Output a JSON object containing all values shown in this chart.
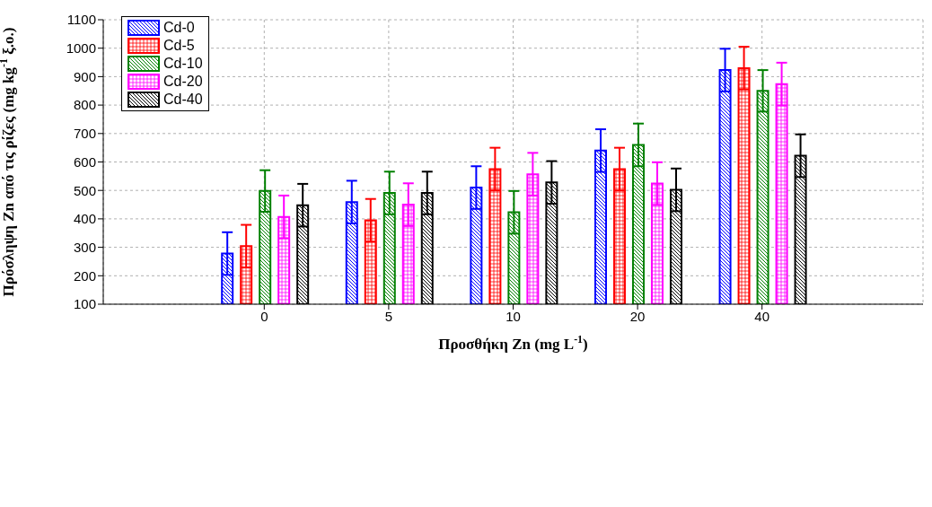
{
  "chart_data": {
    "type": "bar",
    "xlabel": "Προσθήκη Zn (mg L$^{-1}$)",
    "ylabel": "Πρόσληψη Zn από τις ρίζες (mg kg$^{-1}$ ξ.ο.)",
    "categories": [
      "0",
      "5",
      "10",
      "20",
      "40"
    ],
    "series": [
      {
        "name": "Cd-0",
        "color": "#0000ff",
        "values": [
          278,
          459,
          510,
          640,
          923
        ],
        "errors": [
          75,
          75,
          75,
          75,
          75
        ]
      },
      {
        "name": "Cd-5",
        "color": "#ff0000",
        "values": [
          304,
          395,
          575,
          575,
          930
        ],
        "errors": [
          75,
          75,
          75,
          75,
          75
        ]
      },
      {
        "name": "Cd-10",
        "color": "#008000",
        "values": [
          498,
          491,
          423,
          660,
          850
        ],
        "errors": [
          73,
          75,
          75,
          75,
          73
        ]
      },
      {
        "name": "Cd-20",
        "color": "#ff00ff",
        "values": [
          407,
          450,
          557,
          524,
          874
        ],
        "errors": [
          75,
          75,
          75,
          75,
          75
        ]
      },
      {
        "name": "Cd-40",
        "color": "#000000",
        "values": [
          448,
          491,
          528,
          502,
          622
        ],
        "errors": [
          75,
          75,
          75,
          75,
          75
        ]
      }
    ],
    "ylim": [
      100,
      1100
    ],
    "yticks": [
      100,
      200,
      300,
      400,
      500,
      600,
      700,
      800,
      900,
      1000,
      1100
    ],
    "grid": true,
    "legend": "top left"
  }
}
